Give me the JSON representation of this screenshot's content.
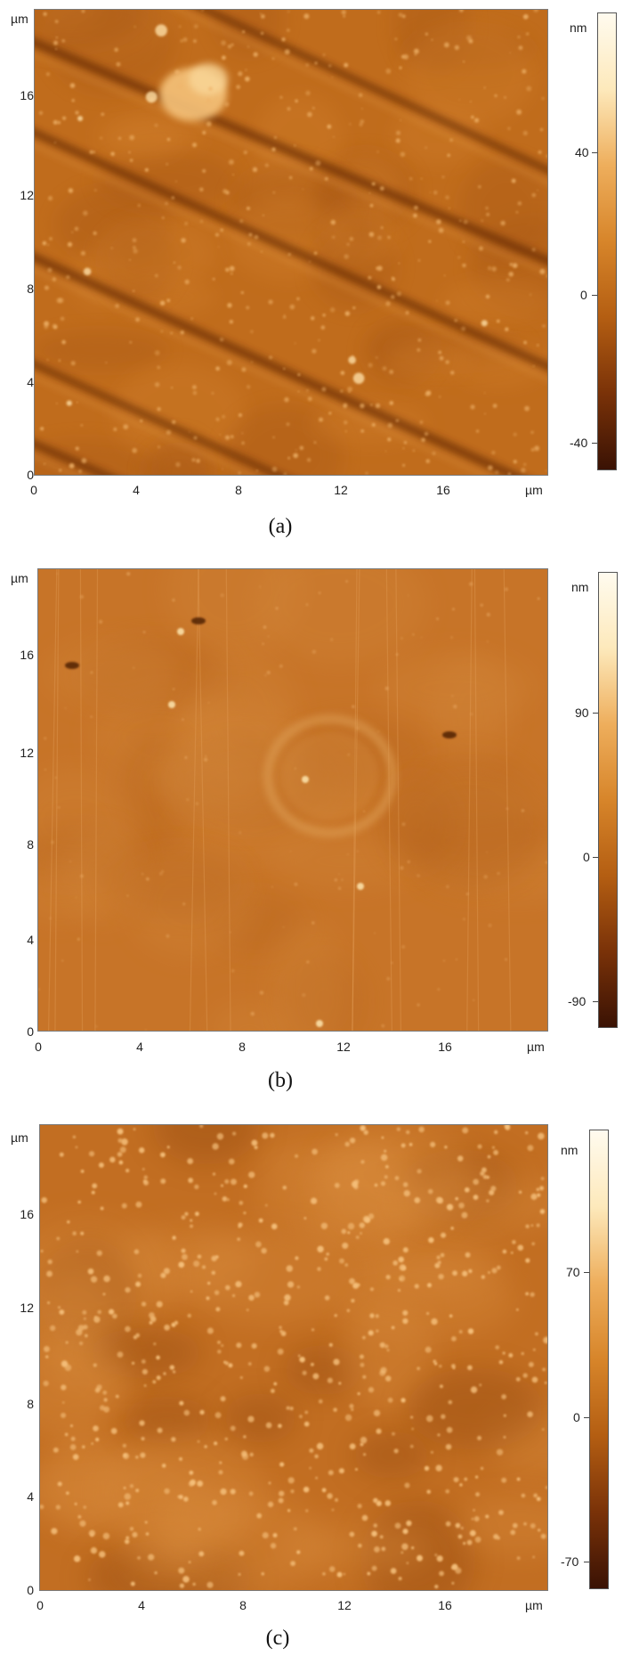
{
  "colormap": {
    "stops": [
      "#3a1204",
      "#7a3208",
      "#b45e12",
      "#d7852a",
      "#eeae5c",
      "#fde9bb",
      "#fffbef"
    ]
  },
  "panels": [
    {
      "caption": "(a)",
      "unit": "nm",
      "axis_unit": "µm",
      "y_ticks": [
        "16",
        "12",
        "8",
        "4",
        "0"
      ],
      "x_ticks": [
        "0",
        "4",
        "8",
        "12",
        "16"
      ],
      "colorbar_ticks": [
        "40",
        "0",
        "-40"
      ],
      "surface": "streaked"
    },
    {
      "caption": "(b)",
      "unit": "nm",
      "axis_unit": "µm",
      "y_ticks": [
        "16",
        "12",
        "8",
        "4",
        "0"
      ],
      "x_ticks": [
        "0",
        "4",
        "8",
        "12",
        "16"
      ],
      "colorbar_ticks": [
        "90",
        "0",
        "-90"
      ],
      "surface": "smooth-with-ring"
    },
    {
      "caption": "(c)",
      "unit": "nm",
      "axis_unit": "µm",
      "y_ticks": [
        "16",
        "12",
        "8",
        "4",
        "0"
      ],
      "x_ticks": [
        "0",
        "4",
        "8",
        "12",
        "16"
      ],
      "colorbar_ticks": [
        "70",
        "0",
        "-70"
      ],
      "surface": "dotted"
    }
  ]
}
